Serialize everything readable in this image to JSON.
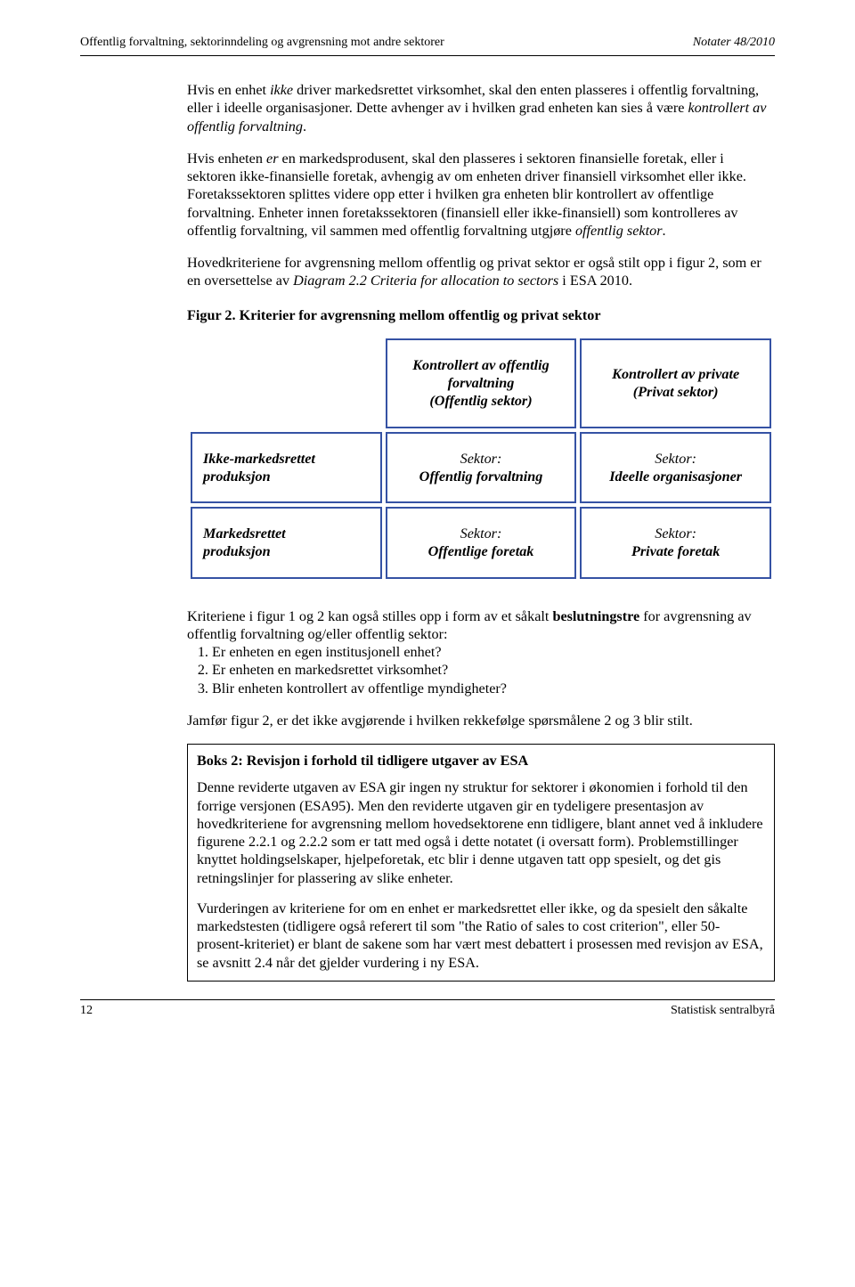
{
  "header": {
    "left": "Offentlig forvaltning, sektorinndeling og avgrensning mot andre sektorer",
    "right": "Notater 48/2010"
  },
  "paragraphs": {
    "p1_a": "Hvis en enhet ",
    "p1_b": "ikke",
    "p1_c": " driver markedsrettet virksomhet, skal den enten plasseres i offentlig forvaltning, eller i ideelle organisasjoner. Dette avhenger av i hvilken grad enheten kan sies å være ",
    "p1_d": "kontrollert av offentlig forvaltning",
    "p1_e": ".",
    "p2_a": "Hvis enheten ",
    "p2_b": "er",
    "p2_c": " en markedsprodusent, skal den plasseres i sektoren finansielle foretak, eller i sektoren ikke-finansielle foretak, avhengig av om enheten driver finansiell virksomhet eller ikke. Foretakssektoren splittes videre opp etter i hvilken gra enheten blir kontrollert av offentlige forvaltning. Enheter innen foretakssektoren (finansiell eller ikke-finansiell) som kontrolleres av offentlig forvaltning, vil sammen med offentlig forvaltning utgjøre ",
    "p2_d": "offentlig sektor",
    "p2_e": ".",
    "p3_a": "Hovedkriteriene for avgrensning mellom offentlig og privat sektor er også stilt opp i figur 2, som er en oversettelse av ",
    "p3_b": "Diagram 2.2 Criteria for allocation to sectors",
    "p3_c": " i ESA 2010."
  },
  "figure2": {
    "title": "Figur 2. Kriterier for avgrensning mellom offentlig og privat sektor",
    "border_color": "#3552a4",
    "col1_l1": "Kontrollert av offentlig",
    "col1_l2": "forvaltning",
    "col1_l3": "(Offentlig sektor)",
    "col2_l1": "Kontrollert av private",
    "col2_l2": "(Privat sektor)",
    "row1_l1": "Ikke-markedsrettet",
    "row1_l2": "produksjon",
    "row2_l1": "Markedsrettet",
    "row2_l2": "produksjon",
    "sektor_label": "Sektor:",
    "cell11": "Offentlig forvaltning",
    "cell12": "Ideelle organisasjoner",
    "cell21": "Offentlige foretak",
    "cell22": "Private foretak"
  },
  "after_table": {
    "intro_a": "Kriteriene i figur 1 og 2 kan også stilles opp i form av et såkalt ",
    "intro_b": "beslutningstre",
    "intro_c": " for avgrensning av offentlig forvaltning og/eller offentlig sektor:",
    "items": [
      "Er enheten en egen institusjonell enhet?",
      "Er enheten en markedsrettet virksomhet?",
      "Blir enheten kontrollert av offentlige myndigheter?"
    ],
    "note": "Jamfør figur 2, er det ikke avgjørende i hvilken rekkefølge spørsmålene 2 og 3 blir stilt."
  },
  "boks": {
    "title": "Boks 2: Revisjon i forhold til tidligere utgaver av ESA",
    "p1": "Denne reviderte utgaven av ESA gir ingen ny struktur for sektorer i økonomien i forhold til den forrige versjonen (ESA95). Men den reviderte utgaven gir en tydeligere presentasjon av hovedkriteriene for avgrensning mellom hovedsektorene enn tidligere, blant annet ved å inkludere figurene 2.2.1 og 2.2.2 som er tatt med også i dette notatet (i oversatt form). Problemstillinger knyttet holdingselskaper, hjelpeforetak, etc blir i denne utgaven tatt opp spesielt, og det gis retningslinjer for plassering av slike enheter.",
    "p2": "Vurderingen av kriteriene for om en enhet er markedsrettet eller ikke, og da spesielt den såkalte markedstesten (tidligere også referert til som \"the Ratio of sales to cost criterion\", eller 50-prosent-kriteriet) er blant de sakene som har vært mest debattert i prosessen med revisjon av ESA, se avsnitt 2.4 når det gjelder vurdering i ny ESA."
  },
  "footer": {
    "page_number": "12",
    "right": "Statistisk sentralbyrå"
  }
}
